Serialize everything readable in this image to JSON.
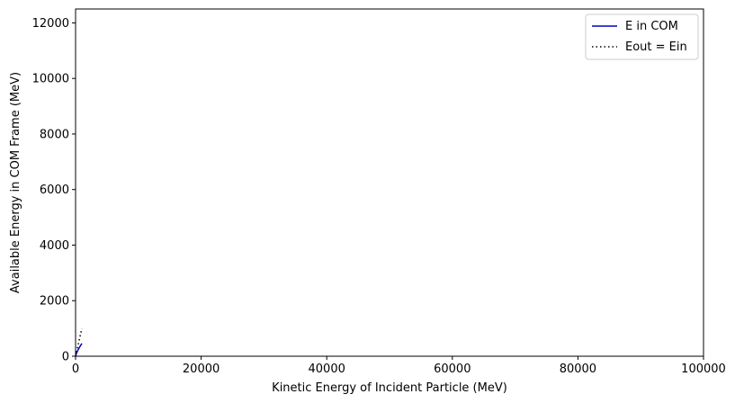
{
  "chart_data": {
    "type": "line",
    "xlabel": "Kinetic Energy of Incident Particle (MeV)",
    "ylabel": "Available Energy in COM Frame (MeV)",
    "xlim": [
      0,
      100000
    ],
    "ylim": [
      0,
      12500
    ],
    "xticks": [
      0,
      20000,
      40000,
      60000,
      80000,
      100000
    ],
    "yticks": [
      0,
      2000,
      4000,
      6000,
      8000,
      10000,
      12000
    ],
    "grid": false,
    "legend_position": "top-right",
    "series": [
      {
        "name": "E in COM",
        "color": "#0000cc",
        "style": "solid",
        "x": [
          0,
          100,
          250,
          500,
          750,
          1000
        ],
        "y": [
          0,
          80,
          160,
          270,
          370,
          460
        ]
      },
      {
        "name": "Eout = Ein",
        "color": "#000000",
        "style": "dotted",
        "x": [
          0,
          250,
          500,
          750,
          1000
        ],
        "y": [
          0,
          250,
          500,
          750,
          1000
        ]
      }
    ]
  }
}
